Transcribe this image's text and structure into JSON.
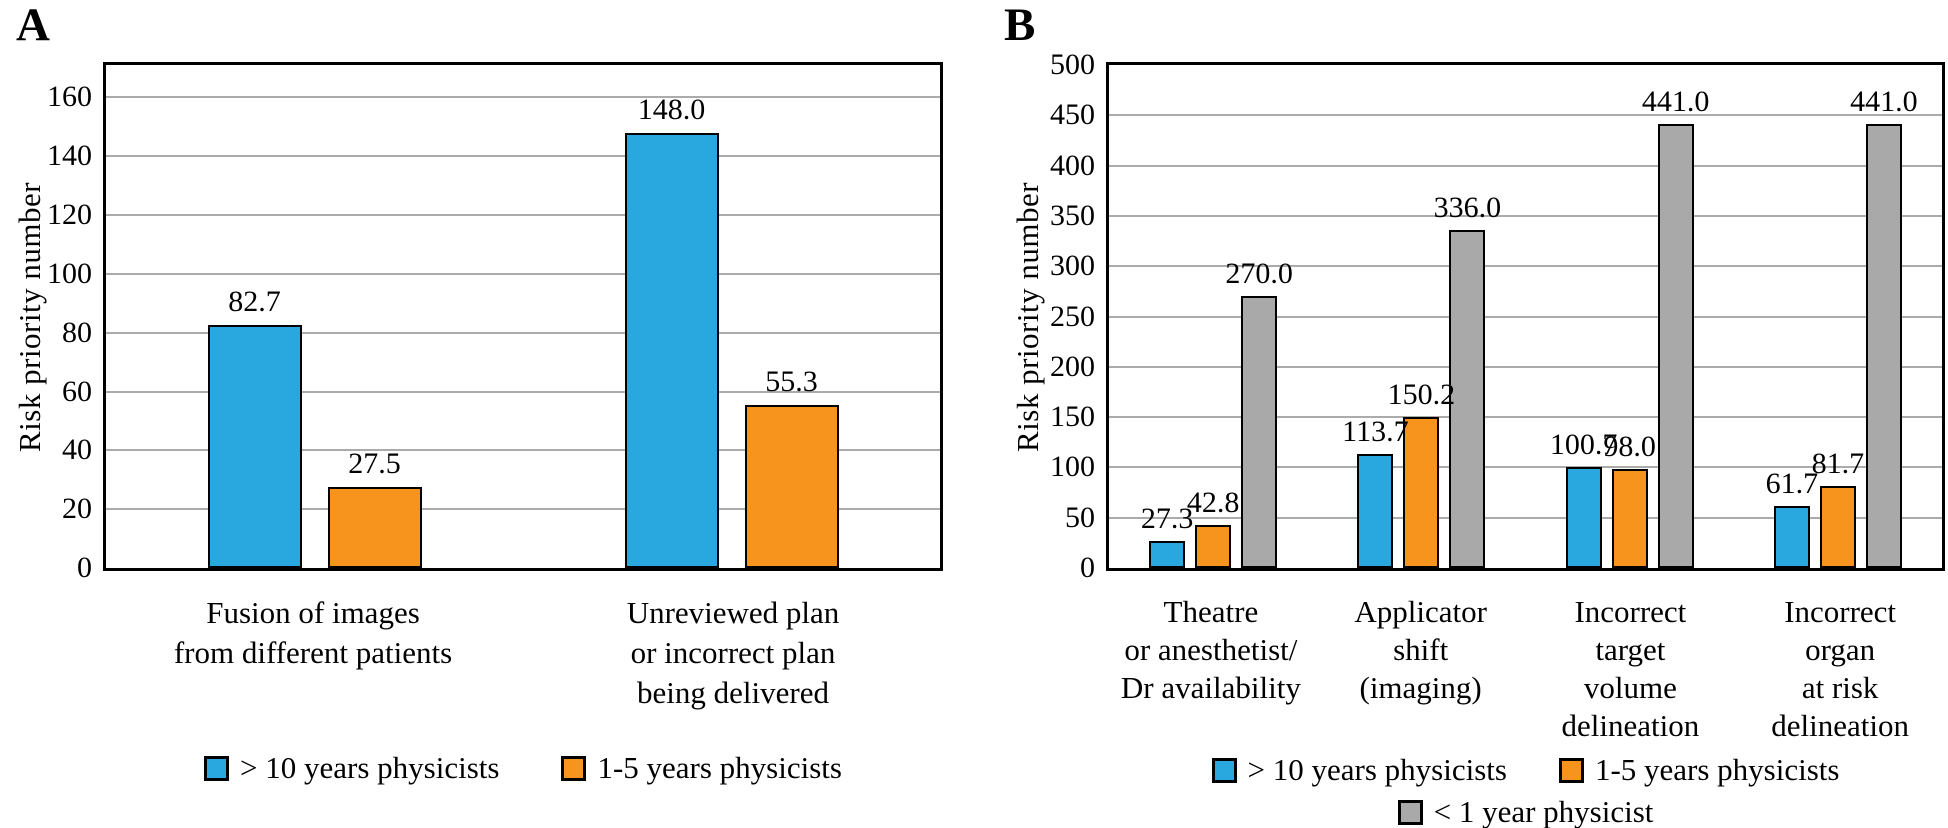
{
  "colors": {
    "blue": "#29A8E0",
    "orange": "#F7941E",
    "gray": "#A9A9A9",
    "gridline": "#ABABAB",
    "axis": "#000000",
    "background": "#FFFFFF"
  },
  "chart_data": [
    {
      "type": "bar",
      "panel_label": "A",
      "title": "",
      "xlabel": "",
      "ylabel": "Risk priority number",
      "ylim": [
        0,
        171
      ],
      "yticks": [
        0,
        20,
        40,
        60,
        80,
        100,
        120,
        140,
        160
      ],
      "grid": true,
      "legend_position": "bottom",
      "categories": [
        [
          "Fusion of images",
          "from different patients"
        ],
        [
          "Unreviewed plan",
          "or incorrect plan",
          "being delivered"
        ]
      ],
      "series": [
        {
          "name": "> 10 years physicists",
          "color_key": "blue",
          "values": [
            82.7,
            148.0
          ],
          "labels": [
            "82.7",
            "148.0"
          ]
        },
        {
          "name": "1-5 years physicists",
          "color_key": "orange",
          "values": [
            27.5,
            55.3
          ],
          "labels": [
            "27.5",
            "55.3"
          ]
        }
      ],
      "legend_rows": [
        [
          0,
          1
        ]
      ]
    },
    {
      "type": "bar",
      "panel_label": "B",
      "title": "",
      "xlabel": "",
      "ylabel": "Risk priority number",
      "ylim": [
        0,
        500
      ],
      "yticks": [
        0,
        50,
        100,
        150,
        200,
        250,
        300,
        350,
        400,
        450,
        500
      ],
      "grid": true,
      "legend_position": "bottom",
      "categories": [
        [
          "Theatre",
          "or anesthetist/",
          "Dr availability"
        ],
        [
          "Applicator",
          "shift",
          "(imaging)"
        ],
        [
          "Incorrect",
          "target",
          "volume",
          "delineation"
        ],
        [
          "Incorrect",
          "organ",
          "at risk",
          "delineation"
        ]
      ],
      "series": [
        {
          "name": "> 10 years physicists",
          "color_key": "blue",
          "values": [
            27.3,
            113.7,
            100.7,
            61.7
          ],
          "labels": [
            "27.3",
            "113.7",
            "100.7",
            "61.7"
          ]
        },
        {
          "name": "1-5 years physicists",
          "color_key": "orange",
          "values": [
            42.8,
            150.2,
            98.0,
            81.7
          ],
          "labels": [
            "42.8",
            "150.2",
            "98.0",
            "81.7"
          ]
        },
        {
          "name": "< 1 year physicist",
          "color_key": "gray",
          "values": [
            270.0,
            336.0,
            441.0,
            441.0
          ],
          "labels": [
            "270.0",
            "336.0",
            "441.0",
            "441.0"
          ]
        }
      ],
      "legend_rows": [
        [
          0,
          1
        ],
        [
          2
        ]
      ]
    }
  ]
}
